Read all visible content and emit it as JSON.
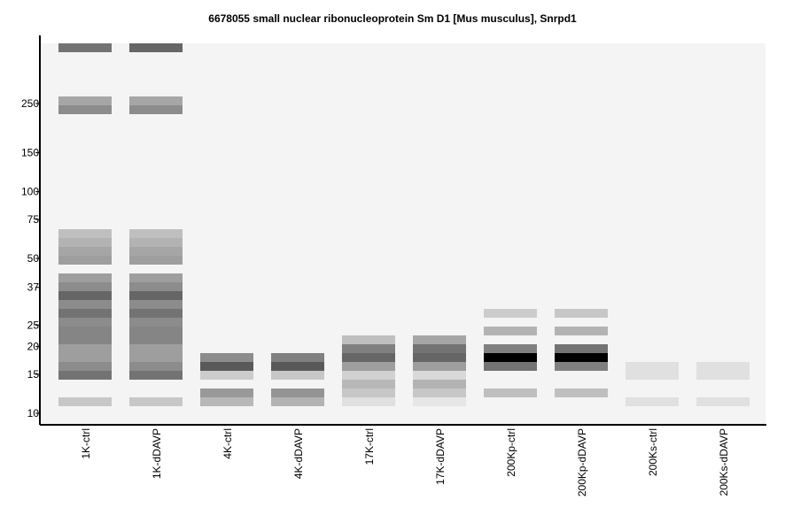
{
  "chart_data": {
    "type": "heatmap",
    "title": "6678055 small nuclear ribonucleoprotein Sm D1 [Mus musculus], Snrpd1",
    "xlabel": "",
    "ylabel": "",
    "y_scale": "log",
    "y_ticks": [
      {
        "label": "250",
        "value": 250
      },
      {
        "label": "150",
        "value": 150
      },
      {
        "label": "100",
        "value": 100
      },
      {
        "label": "75",
        "value": 75
      },
      {
        "label": "50",
        "value": 50
      },
      {
        "label": "37",
        "value": 37
      },
      {
        "label": "25",
        "value": 25
      },
      {
        "label": "20",
        "value": 20
      },
      {
        "label": "15",
        "value": 15
      },
      {
        "label": "10",
        "value": 10
      }
    ],
    "lanes": [
      "1K-ctrl",
      "1K-dDAVP",
      "4K-ctrl",
      "4K-dDAVP",
      "17K-ctrl",
      "17K-dDAVP",
      "200Kp-ctrl",
      "200Kp-dDAVP",
      "200Ks-ctrl",
      "200Ks-dDAVP"
    ],
    "band_scale": "position along the gel from top of panel (row index, 10 px per row), darkness 0 = white to 1 = black",
    "bands": [
      {
        "lane": 0,
        "rows": [
          [
            0,
            0.55
          ],
          [
            6,
            0.35
          ],
          [
            7,
            0.45
          ],
          [
            21,
            0.25
          ],
          [
            22,
            0.3
          ],
          [
            23,
            0.35
          ],
          [
            24,
            0.38
          ],
          [
            26,
            0.38
          ],
          [
            27,
            0.45
          ],
          [
            28,
            0.6
          ],
          [
            29,
            0.45
          ],
          [
            30,
            0.55
          ],
          [
            31,
            0.45
          ],
          [
            32,
            0.48
          ],
          [
            33,
            0.48
          ],
          [
            34,
            0.38
          ],
          [
            35,
            0.38
          ],
          [
            36,
            0.45
          ],
          [
            37,
            0.55
          ],
          [
            40,
            0.22
          ]
        ]
      },
      {
        "lane": 1,
        "rows": [
          [
            0,
            0.6
          ],
          [
            6,
            0.35
          ],
          [
            7,
            0.45
          ],
          [
            21,
            0.25
          ],
          [
            22,
            0.3
          ],
          [
            23,
            0.35
          ],
          [
            24,
            0.38
          ],
          [
            26,
            0.38
          ],
          [
            27,
            0.45
          ],
          [
            28,
            0.6
          ],
          [
            29,
            0.45
          ],
          [
            30,
            0.55
          ],
          [
            31,
            0.45
          ],
          [
            32,
            0.48
          ],
          [
            33,
            0.48
          ],
          [
            34,
            0.38
          ],
          [
            35,
            0.38
          ],
          [
            36,
            0.45
          ],
          [
            37,
            0.55
          ],
          [
            40,
            0.22
          ]
        ]
      },
      {
        "lane": 2,
        "rows": [
          [
            35,
            0.45
          ],
          [
            36,
            0.65
          ],
          [
            37,
            0.2
          ],
          [
            39,
            0.4
          ],
          [
            40,
            0.28
          ]
        ]
      },
      {
        "lane": 3,
        "rows": [
          [
            35,
            0.5
          ],
          [
            36,
            0.65
          ],
          [
            37,
            0.22
          ],
          [
            39,
            0.42
          ],
          [
            40,
            0.3
          ]
        ]
      },
      {
        "lane": 4,
        "rows": [
          [
            33,
            0.25
          ],
          [
            34,
            0.5
          ],
          [
            35,
            0.6
          ],
          [
            36,
            0.38
          ],
          [
            37,
            0.18
          ],
          [
            38,
            0.28
          ],
          [
            39,
            0.22
          ],
          [
            40,
            0.12
          ]
        ]
      },
      {
        "lane": 5,
        "rows": [
          [
            33,
            0.35
          ],
          [
            34,
            0.55
          ],
          [
            35,
            0.6
          ],
          [
            36,
            0.38
          ],
          [
            37,
            0.15
          ],
          [
            38,
            0.3
          ],
          [
            39,
            0.22
          ],
          [
            40,
            0.1
          ]
        ]
      },
      {
        "lane": 6,
        "rows": [
          [
            30,
            0.2
          ],
          [
            32,
            0.3
          ],
          [
            34,
            0.5
          ],
          [
            35,
            1.0
          ],
          [
            36,
            0.55
          ],
          [
            39,
            0.25
          ]
        ]
      },
      {
        "lane": 7,
        "rows": [
          [
            30,
            0.22
          ],
          [
            32,
            0.3
          ],
          [
            34,
            0.55
          ],
          [
            35,
            1.0
          ],
          [
            36,
            0.5
          ],
          [
            39,
            0.25
          ]
        ]
      },
      {
        "lane": 8,
        "rows": [
          [
            36,
            0.12
          ],
          [
            37,
            0.12
          ],
          [
            40,
            0.12
          ]
        ]
      },
      {
        "lane": 9,
        "rows": [
          [
            36,
            0.12
          ],
          [
            37,
            0.12
          ],
          [
            40,
            0.12
          ]
        ]
      }
    ],
    "colors": {
      "panel": "#f4f4f4",
      "axis": "#000000",
      "background": "#ffffff"
    }
  }
}
